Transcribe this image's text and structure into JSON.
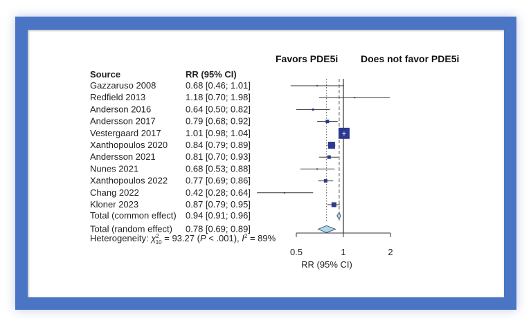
{
  "chart_data": {
    "type": "forest",
    "favors_left": "Favors PDE5i",
    "favors_right": "Does not favor PDE5i",
    "col_source": "Source",
    "col_rr": "RR (95% CI)",
    "xlabel": "RR (95% CI)",
    "xscale": "log",
    "xlim": [
      0.5,
      2
    ],
    "xticks": [
      "0.5",
      "1",
      "2"
    ],
    "studies": [
      {
        "source": "Gazzaruso 2008",
        "rr": 0.68,
        "lo": 0.46,
        "hi": 1.01,
        "label": "0.68 [0.46; 1.01]"
      },
      {
        "source": "Redfield 2013",
        "rr": 1.18,
        "lo": 0.7,
        "hi": 1.98,
        "label": "1.18 [0.70; 1.98]"
      },
      {
        "source": "Anderson 2016",
        "rr": 0.64,
        "lo": 0.5,
        "hi": 0.82,
        "label": "0.64 [0.50; 0.82]"
      },
      {
        "source": "Andersson 2017",
        "rr": 0.79,
        "lo": 0.68,
        "hi": 0.92,
        "label": "0.79 [0.68; 0.92]"
      },
      {
        "source": "Vestergaard 2017",
        "rr": 1.01,
        "lo": 0.98,
        "hi": 1.04,
        "label": "1.01 [0.98; 1.04]"
      },
      {
        "source": "Xanthopoulos 2020",
        "rr": 0.84,
        "lo": 0.79,
        "hi": 0.89,
        "label": "0.84 [0.79; 0.89]"
      },
      {
        "source": "Andersson 2021",
        "rr": 0.81,
        "lo": 0.7,
        "hi": 0.93,
        "label": "0.81 [0.70; 0.93]"
      },
      {
        "source": "Nunes 2021",
        "rr": 0.68,
        "lo": 0.53,
        "hi": 0.88,
        "label": "0.68 [0.53; 0.88]"
      },
      {
        "source": "Xanthopoulos 2022",
        "rr": 0.77,
        "lo": 0.69,
        "hi": 0.86,
        "label": "0.77 [0.69; 0.86]"
      },
      {
        "source": "Chang 2022",
        "rr": 0.42,
        "lo": 0.28,
        "hi": 0.64,
        "label": "0.42 [0.28; 0.64]"
      },
      {
        "source": "Kloner 2023",
        "rr": 0.87,
        "lo": 0.79,
        "hi": 0.95,
        "label": "0.87 [0.79; 0.95]"
      }
    ],
    "pooled": [
      {
        "source": "Total (common effect)",
        "rr": 0.94,
        "lo": 0.91,
        "hi": 0.96,
        "label": "0.94 [0.91; 0.96]"
      },
      {
        "source": "Total (random effect)",
        "rr": 0.78,
        "lo": 0.69,
        "hi": 0.89,
        "label": "0.78 [0.69; 0.89]"
      }
    ],
    "heterogeneity": {
      "prefix": "Heterogeneity: ",
      "chi": "χ",
      "df": "10",
      "sup2": "2",
      "stat": " = 93.27 (",
      "p": "P",
      "pval": " < .001), ",
      "i": "I",
      "ival": " = 89%"
    },
    "colors": {
      "square": "#2b3990",
      "diamond": "#a8dcec",
      "frame": "#4a74c4"
    }
  }
}
